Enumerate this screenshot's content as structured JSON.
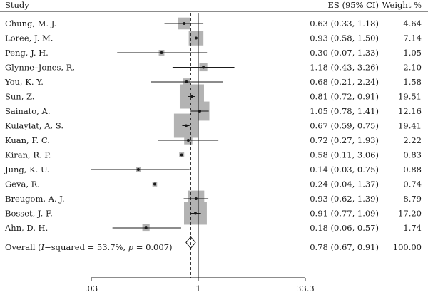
{
  "chart_data": {
    "type": "forest",
    "headers": {
      "study": "Study",
      "es": "ES (95% CI)",
      "weight": "Weight %"
    },
    "x_scale": "log",
    "x_range": [
      0.03,
      40
    ],
    "x_ticks": [
      {
        "value": 0.03,
        "label": ".03"
      },
      {
        "value": 1,
        "label": "1"
      },
      {
        "value": 33.3,
        "label": "33.3"
      }
    ],
    "null_line": 1,
    "pooled_line": 0.78,
    "studies": [
      {
        "study": "Chung, M. J.",
        "es": 0.63,
        "lower": 0.33,
        "upper": 1.18,
        "es_text": "0.63 (0.33, 1.18)",
        "weight": 4.64,
        "weight_text": "4.64"
      },
      {
        "study": "Loree, J. M.",
        "es": 0.93,
        "lower": 0.58,
        "upper": 1.5,
        "es_text": "0.93 (0.58, 1.50)",
        "weight": 7.14,
        "weight_text": "7.14"
      },
      {
        "study": "Peng, J. H.",
        "es": 0.3,
        "lower": 0.07,
        "upper": 1.33,
        "es_text": "0.30 (0.07, 1.33)",
        "weight": 1.05,
        "weight_text": "1.05"
      },
      {
        "study": "Glynne–Jones, R.",
        "es": 1.18,
        "lower": 0.43,
        "upper": 3.26,
        "es_text": "1.18 (0.43, 3.26)",
        "weight": 2.1,
        "weight_text": "2.10"
      },
      {
        "study": "You, K. Y.",
        "es": 0.68,
        "lower": 0.21,
        "upper": 2.24,
        "es_text": "0.68 (0.21, 2.24)",
        "weight": 1.58,
        "weight_text": "1.58"
      },
      {
        "study": "Sun, Z.",
        "es": 0.81,
        "lower": 0.72,
        "upper": 0.91,
        "es_text": "0.81 (0.72, 0.91)",
        "weight": 19.51,
        "weight_text": "19.51"
      },
      {
        "study": "Sainato, A.",
        "es": 1.05,
        "lower": 0.78,
        "upper": 1.41,
        "es_text": "1.05 (0.78, 1.41)",
        "weight": 12.16,
        "weight_text": "12.16"
      },
      {
        "study": "Kulaylat, A. S.",
        "es": 0.67,
        "lower": 0.59,
        "upper": 0.75,
        "es_text": "0.67 (0.59, 0.75)",
        "weight": 19.41,
        "weight_text": "19.41"
      },
      {
        "study": "Kuan, F. C.",
        "es": 0.72,
        "lower": 0.27,
        "upper": 1.93,
        "es_text": "0.72 (0.27, 1.93)",
        "weight": 2.22,
        "weight_text": "2.22"
      },
      {
        "study": "Kiran, R. P.",
        "es": 0.58,
        "lower": 0.11,
        "upper": 3.06,
        "es_text": "0.58 (0.11, 3.06)",
        "weight": 0.83,
        "weight_text": "0.83"
      },
      {
        "study": "Jung, K. U.",
        "es": 0.14,
        "lower": 0.03,
        "upper": 0.75,
        "es_text": "0.14 (0.03, 0.75)",
        "weight": 0.88,
        "weight_text": "0.88"
      },
      {
        "study": "Geva, R.",
        "es": 0.24,
        "lower": 0.04,
        "upper": 1.37,
        "es_text": "0.24 (0.04, 1.37)",
        "weight": 0.74,
        "weight_text": "0.74"
      },
      {
        "study": "Breugom, A. J.",
        "es": 0.93,
        "lower": 0.62,
        "upper": 1.39,
        "es_text": "0.93 (0.62, 1.39)",
        "weight": 8.79,
        "weight_text": "8.79"
      },
      {
        "study": "Bosset, J. F.",
        "es": 0.91,
        "lower": 0.77,
        "upper": 1.09,
        "es_text": "0.91 (0.77, 1.09)",
        "weight": 17.2,
        "weight_text": "17.20"
      },
      {
        "study": "Ahn, D. H.",
        "es": 0.18,
        "lower": 0.06,
        "upper": 0.57,
        "es_text": "0.18 (0.06, 0.57)",
        "weight": 1.74,
        "weight_text": "1.74"
      }
    ],
    "overall": {
      "label_prefix": "Overall (",
      "i_symbol": "I",
      "label_mid": "−squared = 53.7%, ",
      "p_symbol": "p",
      "label_suffix": " = 0.007)",
      "es": 0.78,
      "lower": 0.67,
      "upper": 0.91,
      "es_text": "0.78 (0.67, 0.91)",
      "weight_text": "100.00"
    },
    "colors": {
      "box": "#b3b3b3",
      "line": "#1a1a1a",
      "text": "#1a1a1a"
    }
  }
}
